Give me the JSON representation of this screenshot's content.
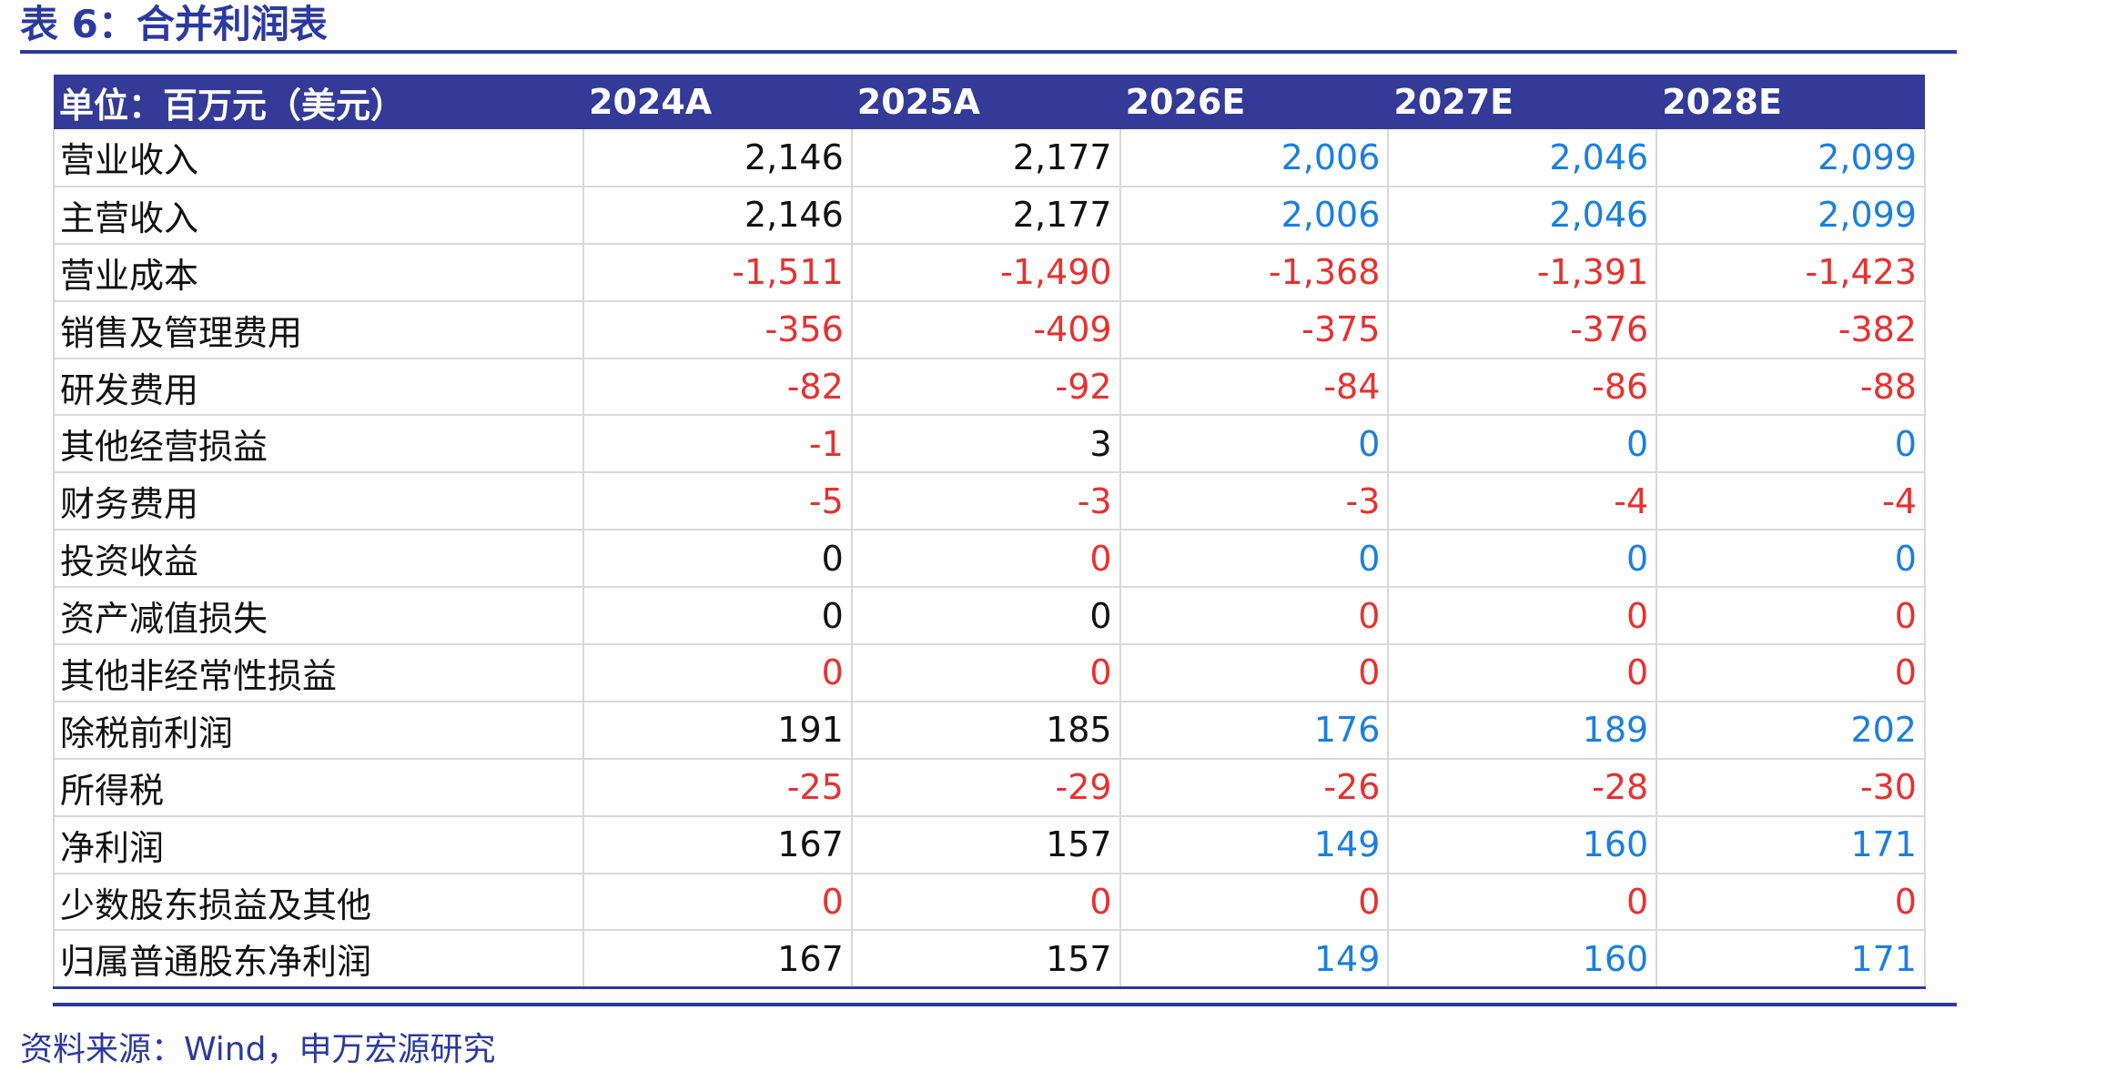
{
  "title": "表 6：合并利润表",
  "source": "资料来源：Wind，申万宏源研究",
  "table": {
    "header": [
      "单位：百万元（美元）",
      "2024A",
      "2025A",
      "2026E",
      "2027E",
      "2028E"
    ],
    "rows": [
      {
        "label": "营业收入",
        "values": [
          "2,146",
          "2,177",
          "2,006",
          "2,046",
          "2,099"
        ],
        "colors": [
          "black",
          "black",
          "blue",
          "blue",
          "blue"
        ]
      },
      {
        "label": "主营收入",
        "values": [
          "2,146",
          "2,177",
          "2,006",
          "2,046",
          "2,099"
        ],
        "colors": [
          "black",
          "black",
          "blue",
          "blue",
          "blue"
        ]
      },
      {
        "label": "营业成本",
        "values": [
          "-1,511",
          "-1,490",
          "-1,368",
          "-1,391",
          "-1,423"
        ],
        "colors": [
          "neg",
          "neg",
          "neg",
          "neg",
          "neg"
        ]
      },
      {
        "label": "销售及管理费用",
        "values": [
          "-356",
          "-409",
          "-375",
          "-376",
          "-382"
        ],
        "colors": [
          "neg",
          "neg",
          "neg",
          "neg",
          "neg"
        ]
      },
      {
        "label": "研发费用",
        "values": [
          "-82",
          "-92",
          "-84",
          "-86",
          "-88"
        ],
        "colors": [
          "neg",
          "neg",
          "neg",
          "neg",
          "neg"
        ]
      },
      {
        "label": "其他经营损益",
        "values": [
          "-1",
          "3",
          "0",
          "0",
          "0"
        ],
        "colors": [
          "neg",
          "black",
          "blue",
          "blue",
          "blue"
        ]
      },
      {
        "label": "财务费用",
        "values": [
          "-5",
          "-3",
          "-3",
          "-4",
          "-4"
        ],
        "colors": [
          "neg",
          "neg",
          "neg",
          "neg",
          "neg"
        ]
      },
      {
        "label": "投资收益",
        "values": [
          "0",
          "0",
          "0",
          "0",
          "0"
        ],
        "colors": [
          "black",
          "neg",
          "blue",
          "blue",
          "blue"
        ]
      },
      {
        "label": "资产减值损失",
        "values": [
          "0",
          "0",
          "0",
          "0",
          "0"
        ],
        "colors": [
          "black",
          "black",
          "neg",
          "neg",
          "neg"
        ]
      },
      {
        "label": "其他非经常性损益",
        "values": [
          "0",
          "0",
          "0",
          "0",
          "0"
        ],
        "colors": [
          "neg",
          "neg",
          "neg",
          "neg",
          "neg"
        ]
      },
      {
        "label": "除税前利润",
        "values": [
          "191",
          "185",
          "176",
          "189",
          "202"
        ],
        "colors": [
          "black",
          "black",
          "blue",
          "blue",
          "blue"
        ]
      },
      {
        "label": "所得税",
        "values": [
          "-25",
          "-29",
          "-26",
          "-28",
          "-30"
        ],
        "colors": [
          "neg",
          "neg",
          "neg",
          "neg",
          "neg"
        ]
      },
      {
        "label": "净利润",
        "values": [
          "167",
          "157",
          "149",
          "160",
          "171"
        ],
        "colors": [
          "black",
          "black",
          "blue",
          "blue",
          "blue"
        ]
      },
      {
        "label": "少数股东损益及其他",
        "values": [
          "0",
          "0",
          "0",
          "0",
          "0"
        ],
        "colors": [
          "neg",
          "neg",
          "neg",
          "neg",
          "neg"
        ]
      },
      {
        "label": "归属普通股东净利润",
        "values": [
          "167",
          "157",
          "149",
          "160",
          "171"
        ],
        "colors": [
          "black",
          "black",
          "blue",
          "blue",
          "blue"
        ]
      }
    ]
  },
  "palette": {
    "brand_blue": "#2b3aa0",
    "header_bg": "#333a98",
    "negative_red": "#e8312f",
    "forecast_blue": "#1a7fe0",
    "positive_black": "#111111"
  }
}
